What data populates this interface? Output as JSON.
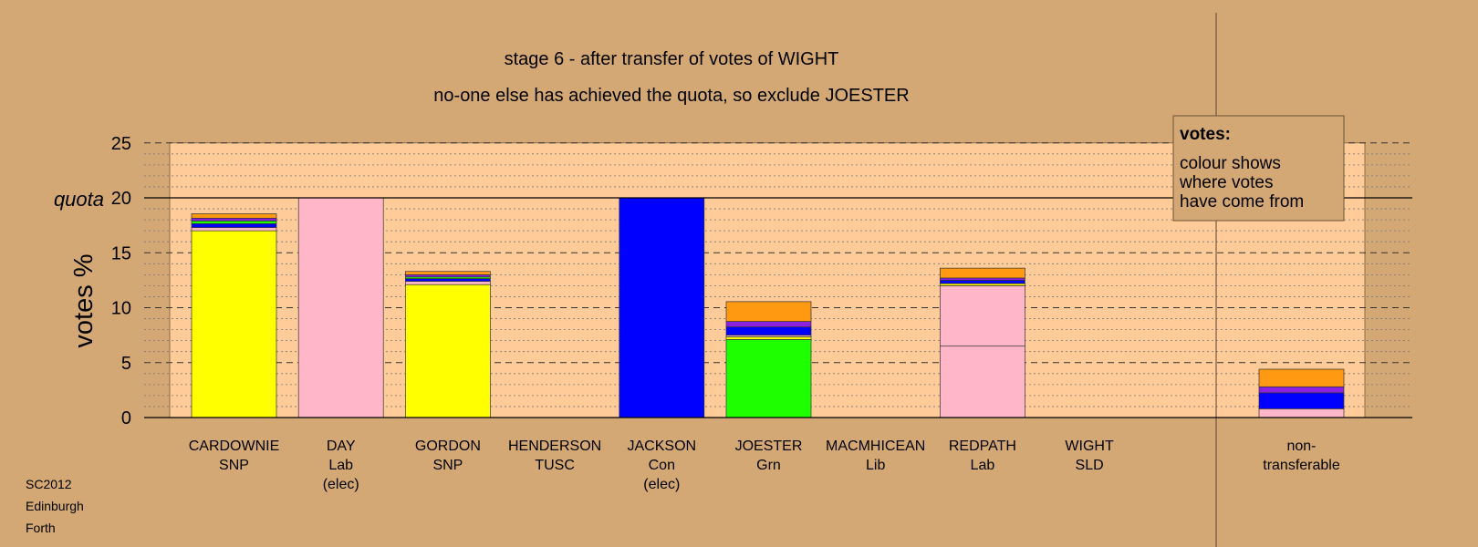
{
  "chart_data": {
    "type": "bar",
    "stacked": true,
    "title": "stage 6 - after transfer of votes of WIGHT",
    "subtitle": "no-one else has achieved the quota, so exclude JOESTER",
    "ylabel": "votes %",
    "ylim": [
      0,
      25
    ],
    "yticks": [
      "0",
      "5",
      "10",
      "15",
      "20",
      "25"
    ],
    "quota": {
      "label": "quota",
      "value": 20
    },
    "grid": true,
    "categories": [
      {
        "name": "CARDOWNIE",
        "party": "SNP",
        "note": ""
      },
      {
        "name": "DAY",
        "party": "Lab",
        "note": "(elec)"
      },
      {
        "name": "GORDON",
        "party": "SNP",
        "note": ""
      },
      {
        "name": "HENDERSON",
        "party": "TUSC",
        "note": ""
      },
      {
        "name": "JACKSON",
        "party": "Con",
        "note": "(elec)"
      },
      {
        "name": "JOESTER",
        "party": "Grn",
        "note": ""
      },
      {
        "name": "MACMHICEAN",
        "party": "Lib",
        "note": ""
      },
      {
        "name": "REDPATH",
        "party": "Lab",
        "note": ""
      },
      {
        "name": "WIGHT",
        "party": "SLD",
        "note": ""
      },
      {
        "name": "non-",
        "party": "transferable",
        "note": ""
      }
    ],
    "segments": [
      [
        {
          "value": 17.0,
          "color": "#FFFF00"
        },
        {
          "value": 0.3,
          "color": "#FFB6C8"
        },
        {
          "value": 0.35,
          "color": "#0000FF"
        },
        {
          "value": 0.25,
          "color": "#1EFF00"
        },
        {
          "value": 0.25,
          "color": "#8B20E0"
        },
        {
          "value": 0.4,
          "color": "#FF9912"
        }
      ],
      [
        {
          "value": 20.0,
          "color": "#FFB6C8"
        }
      ],
      [
        {
          "value": 12.1,
          "color": "#FFFF00"
        },
        {
          "value": 0.3,
          "color": "#FFB6C8"
        },
        {
          "value": 0.25,
          "color": "#0000FF"
        },
        {
          "value": 0.15,
          "color": "#1EFF00"
        },
        {
          "value": 0.2,
          "color": "#8B20E0"
        },
        {
          "value": 0.3,
          "color": "#FF9912"
        }
      ],
      [],
      [
        {
          "value": 20.0,
          "color": "#0000FF"
        }
      ],
      [
        {
          "value": 7.1,
          "color": "#1EFF00"
        },
        {
          "value": 0.25,
          "color": "#FFFF00"
        },
        {
          "value": 0.15,
          "color": "#FFB6C8"
        },
        {
          "value": 0.75,
          "color": "#0000FF"
        },
        {
          "value": 0.5,
          "color": "#8B20E0"
        },
        {
          "value": 1.8,
          "color": "#FF9912"
        }
      ],
      [],
      [
        {
          "value": 6.5,
          "color": "#FFB6C8"
        },
        {
          "value": 5.5,
          "color": "#FFB6C8"
        },
        {
          "value": 0.2,
          "color": "#FFFF00"
        },
        {
          "value": 0.3,
          "color": "#0000FF"
        },
        {
          "value": 0.2,
          "color": "#8B20E0"
        },
        {
          "value": 0.9,
          "color": "#FF9912"
        }
      ],
      [],
      [
        {
          "value": 0.8,
          "color": "#FFB6C8"
        },
        {
          "value": 1.45,
          "color": "#0000FF"
        },
        {
          "value": 0.55,
          "color": "#8B20E0"
        },
        {
          "value": 1.6,
          "color": "#FF9912"
        }
      ]
    ],
    "legend": {
      "title": "votes:",
      "lines": [
        "colour shows",
        "where votes",
        "have come from"
      ],
      "position": "top-right"
    }
  },
  "footer": {
    "lines": [
      "SC2012",
      "Edinburgh",
      "Forth"
    ]
  },
  "colors": {
    "background": "#D4A874",
    "plot_area": "#FFCC99",
    "frame_line": "#8B6A45"
  }
}
